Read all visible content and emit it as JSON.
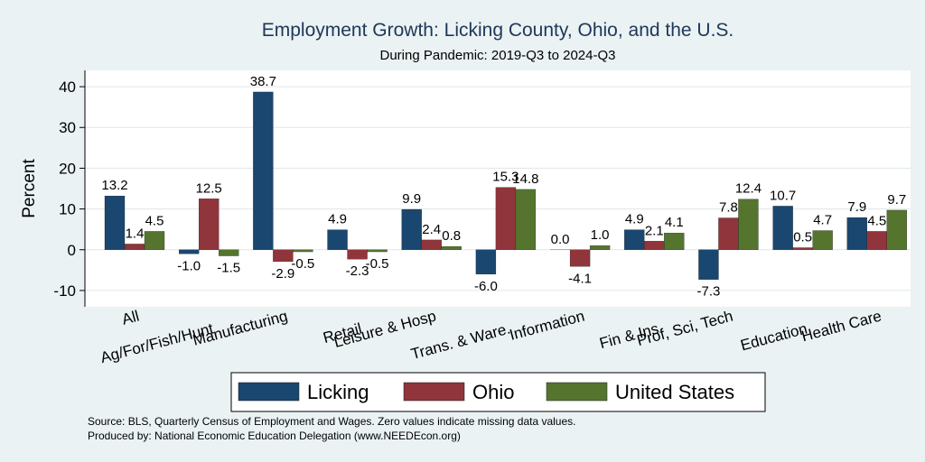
{
  "chart_data": {
    "type": "bar",
    "title": "Employment Growth: Licking County, Ohio, and the U.S.",
    "subtitle": "During Pandemic: 2019-Q3 to 2024-Q3",
    "ylabel": "Percent",
    "ylim": [
      -14,
      44
    ],
    "yticks": [
      -10,
      0,
      10,
      20,
      30,
      40
    ],
    "grid": true,
    "legend_position": "bottom",
    "categories": [
      "All",
      "Ag/For/Fish/Hunt",
      "Manufacturing",
      "Retail",
      "Leisure & Hosp",
      "Trans. & Ware.",
      "Information",
      "Fin & Ins",
      "Prof, Sci, Tech",
      "Education",
      "Health Care"
    ],
    "series": [
      {
        "name": "Licking",
        "color": "#1a476f",
        "values": [
          13.2,
          -1.0,
          38.7,
          4.9,
          9.9,
          -6.0,
          0.0,
          4.9,
          -7.3,
          10.7,
          7.9
        ]
      },
      {
        "name": "Ohio",
        "color": "#90353b",
        "values": [
          1.4,
          12.5,
          -2.9,
          -2.3,
          2.4,
          15.3,
          -4.1,
          2.1,
          7.8,
          0.5,
          4.5
        ]
      },
      {
        "name": "United States",
        "color": "#55752f",
        "values": [
          4.5,
          -1.5,
          -0.5,
          -0.5,
          0.8,
          14.8,
          1.0,
          4.1,
          12.4,
          4.7,
          9.7
        ]
      }
    ],
    "notes": [
      "Source: BLS, Quarterly Census of Employment and Wages. Zero values indicate missing data values.",
      "Produced by: National Economic Education Delegation (www.NEEDEcon.org)"
    ]
  }
}
